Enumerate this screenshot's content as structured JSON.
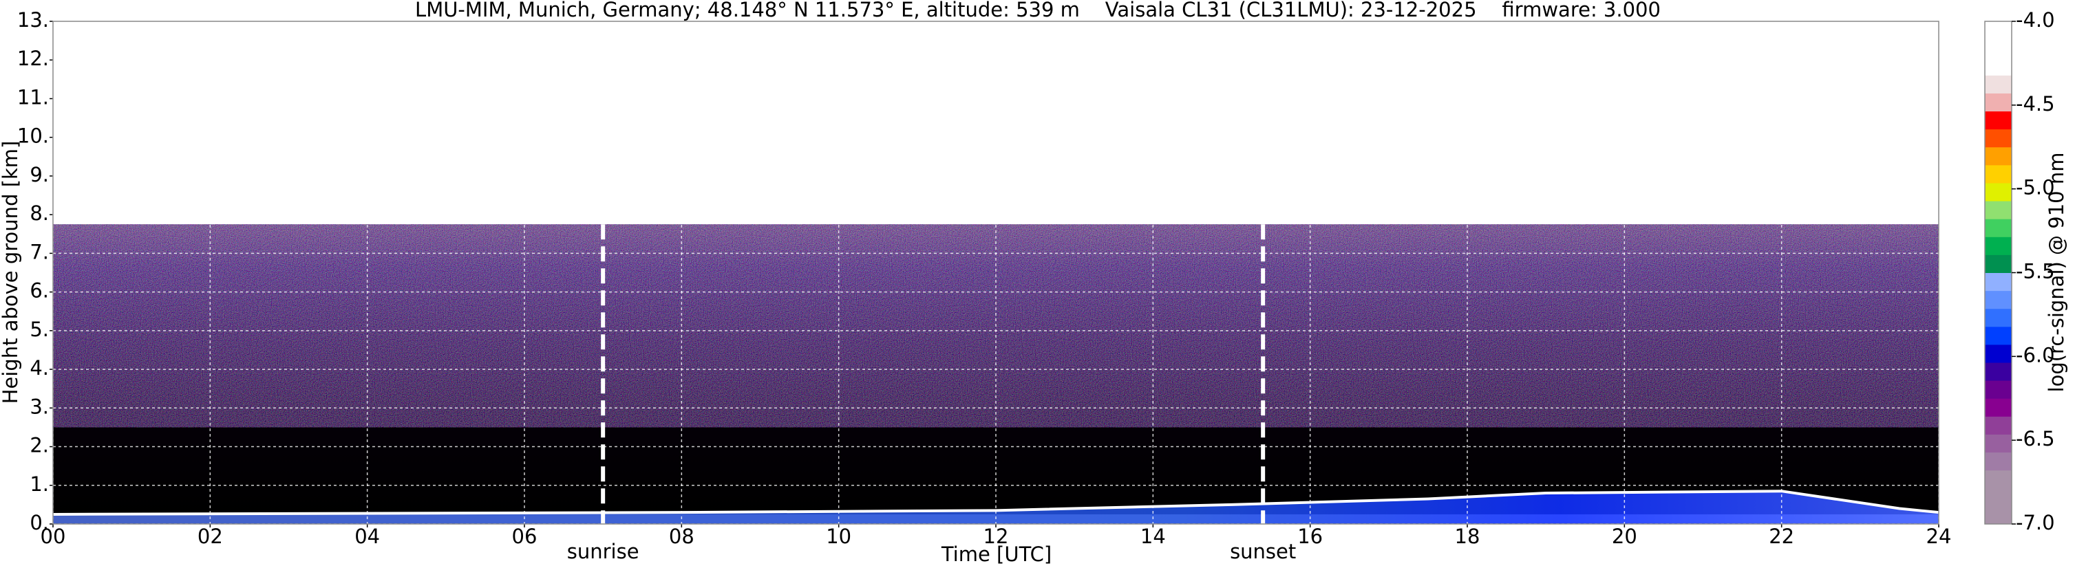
{
  "chart_data": {
    "type": "heatmap",
    "title": "LMU-MIM, Munich, Germany; 48.148° N 11.573° E, altitude: 539 m    Vaisala CL31 (CL31LMU): 23-12-2025    firmware: 3.000",
    "x_label": "Time [UTC]",
    "y_label": "Height above ground [km]",
    "xlim": [
      0,
      24
    ],
    "xticks": [
      {
        "value": 0,
        "label": "00"
      },
      {
        "value": 2,
        "label": "02"
      },
      {
        "value": 4,
        "label": "04"
      },
      {
        "value": 6,
        "label": "06"
      },
      {
        "value": 8,
        "label": "08"
      },
      10,
      12,
      14,
      16,
      18,
      20,
      22,
      24
    ],
    "ylim": [
      0,
      13
    ],
    "yticks": [
      {
        "value": 0,
        "label": "0."
      },
      {
        "value": 1,
        "label": "1."
      },
      {
        "value": 2,
        "label": "2."
      },
      {
        "value": 3,
        "label": "3."
      },
      {
        "value": 4,
        "label": "4."
      },
      {
        "value": 5,
        "label": "5."
      },
      {
        "value": 6,
        "label": "6."
      },
      {
        "value": 7,
        "label": "7."
      },
      {
        "value": 8,
        "label": "8."
      },
      {
        "value": 9,
        "label": "9."
      },
      {
        "value": 10,
        "label": "10."
      },
      {
        "value": 11,
        "label": "11."
      },
      {
        "value": 12,
        "label": "12."
      },
      {
        "value": 13,
        "label": "13."
      }
    ],
    "grid": true,
    "annotations": [
      {
        "text": "sunrise",
        "x": 7.0
      },
      {
        "text": "sunset",
        "x": 15.4
      }
    ],
    "colorbar": {
      "label": "log(rc-signal) @ 910 nm",
      "lim": [
        -7.0,
        -4.0
      ],
      "ticks": [
        {
          "value": -7.0,
          "label": "-7.0"
        },
        -6.5,
        {
          "value": -6.0,
          "label": "-6.0"
        },
        -5.5,
        {
          "value": -5.0,
          "label": "-5.0"
        },
        -4.5,
        {
          "value": -4.0,
          "label": "-4.0"
        }
      ],
      "colors": [
        "#a892a8",
        "#a892a8",
        "#a892a8",
        "#a07ca6",
        "#98609f",
        "#903f98",
        "#880090",
        "#6a0090",
        "#3a00a0",
        "#0000d0",
        "#0040ff",
        "#3070ff",
        "#6090ff",
        "#90b0ff",
        "#009050",
        "#00b050",
        "#40d060",
        "#90e070",
        "#e0f000",
        "#ffd000",
        "#ffa000",
        "#ff5000",
        "#ff0000",
        "#f0b0b0",
        "#f0e0e0",
        "#ffffff",
        "#ffffff",
        "#ffffff"
      ]
    }
  }
}
